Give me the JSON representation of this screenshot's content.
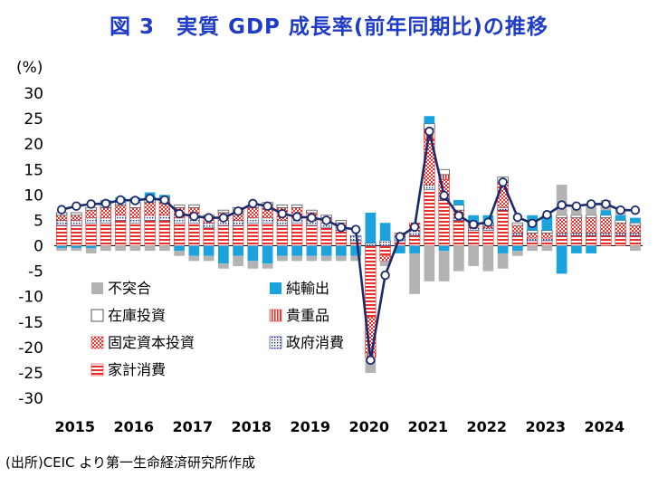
{
  "chart_data": {
    "type": "bar",
    "title": "図 3　実質 GDP 成長率(前年同期比)の推移",
    "ylabel": "(%)",
    "ylim": [
      -30,
      30
    ],
    "yticks": [
      30,
      25,
      20,
      15,
      10,
      5,
      0,
      -5,
      -10,
      -15,
      -20,
      -25,
      -30
    ],
    "year_labels": [
      "2015",
      "2016",
      "2017",
      "2018",
      "2019",
      "2020",
      "2021",
      "2022",
      "2023",
      "2024"
    ],
    "categories": [
      "2015Q1",
      "2015Q2",
      "2015Q3",
      "2015Q4",
      "2016Q1",
      "2016Q2",
      "2016Q3",
      "2016Q4",
      "2017Q1",
      "2017Q2",
      "2017Q3",
      "2017Q4",
      "2018Q1",
      "2018Q2",
      "2018Q3",
      "2018Q4",
      "2019Q1",
      "2019Q2",
      "2019Q3",
      "2019Q4",
      "2020Q1",
      "2020Q2",
      "2020Q3",
      "2020Q4",
      "2021Q1",
      "2021Q2",
      "2021Q3",
      "2021Q4",
      "2022Q1",
      "2022Q2",
      "2022Q3",
      "2022Q4",
      "2023Q1",
      "2023Q2",
      "2023Q3",
      "2023Q4",
      "2024Q1",
      "2024Q2",
      "2024Q3",
      "2024Q4"
    ],
    "legend_placement": "bottom-left inside plot",
    "series": [
      {
        "name": "家計消費",
        "kind": "bar",
        "color": "#e8302a",
        "pattern": "hstripe",
        "values": [
          4,
          4,
          4.5,
          4.5,
          5,
          4.5,
          5,
          5,
          4.5,
          4.5,
          3.5,
          4,
          4,
          4.5,
          4.5,
          4,
          4.5,
          4,
          3.5,
          3,
          1,
          -14,
          -2,
          1,
          2,
          11,
          9,
          5,
          3,
          3,
          7,
          2,
          1,
          1,
          2,
          2,
          2,
          2,
          2,
          2
        ]
      },
      {
        "name": "政府消費",
        "kind": "bar",
        "color": "#1f2f7a",
        "pattern": "dots",
        "values": [
          1,
          1,
          1,
          1,
          1,
          1,
          1,
          1,
          1,
          1,
          1,
          1,
          1,
          1,
          1,
          1,
          1,
          1,
          1,
          1,
          1,
          0.5,
          1,
          1,
          1,
          1,
          0.5,
          0.5,
          0.5,
          0.5,
          0.5,
          0.5,
          0.5,
          0.5,
          0.5,
          0.5,
          0.5,
          0.5,
          0.5,
          0.5
        ]
      },
      {
        "name": "固定資本投資",
        "kind": "bar",
        "color": "#e8302a",
        "pattern": "check",
        "values": [
          1,
          1,
          1.5,
          2,
          2,
          2,
          2.5,
          2.5,
          2,
          2,
          1,
          1.5,
          1.5,
          2,
          2.5,
          2.5,
          2,
          1.5,
          1,
          0.5,
          0,
          -7,
          -1,
          0.5,
          1.5,
          9,
          3.5,
          1.5,
          0.5,
          0.5,
          5,
          1.5,
          1,
          1,
          3,
          3,
          3,
          3,
          2,
          1.5
        ]
      },
      {
        "name": "貴重品",
        "kind": "bar",
        "color": "#e8302a",
        "pattern": "vstripe",
        "values": [
          0,
          0,
          0,
          0,
          0,
          0,
          0,
          0,
          0,
          0,
          0,
          0,
          0,
          0,
          0,
          0,
          0,
          0,
          0,
          0,
          0,
          -1,
          0,
          0,
          0,
          2,
          1,
          0,
          0,
          0,
          0,
          0,
          0,
          0,
          0,
          0,
          0,
          0,
          0,
          0
        ]
      },
      {
        "name": "在庫投資",
        "kind": "bar",
        "color": "#ffffff",
        "pattern": "outline",
        "values": [
          0.5,
          0.5,
          0.5,
          1,
          0.5,
          1,
          1,
          1,
          0.5,
          0.5,
          0.5,
          0.5,
          1,
          0.5,
          0.5,
          0.5,
          0.5,
          0.5,
          0.5,
          0.5,
          0,
          0,
          0,
          0,
          0,
          1,
          1,
          1,
          0.5,
          0.5,
          1,
          0.5,
          0.5,
          0.5,
          0.5,
          0.5,
          0.5,
          0.5,
          0.5,
          0.5
        ]
      },
      {
        "name": "純輸出",
        "kind": "bar",
        "color": "#1aa3dc",
        "pattern": "solid",
        "values": [
          -0.5,
          -0.5,
          -0.5,
          0.5,
          1,
          1,
          1,
          0.5,
          -1,
          -2,
          -2,
          -3.5,
          -2,
          -3,
          -3.5,
          -2,
          -2,
          -2,
          -2,
          -2,
          -2,
          6,
          3.5,
          -1.5,
          -1.5,
          1.5,
          -1,
          1,
          1.5,
          1.5,
          -1.5,
          -1,
          3,
          3,
          -5.5,
          -1.5,
          -1.5,
          1,
          1,
          1
        ]
      },
      {
        "name": "不突合",
        "kind": "bar",
        "color": "#b3b3b3",
        "pattern": "solid",
        "values": [
          -0.5,
          -0.5,
          -1,
          -1,
          -1,
          -1,
          -1,
          -1,
          -1,
          -1,
          -1,
          -1,
          -2,
          -1.5,
          -1,
          -1,
          -1,
          -1,
          -1,
          -1,
          -1,
          -3,
          -1,
          0,
          -8,
          -7,
          -6,
          -5,
          -4,
          -5,
          -3,
          -1,
          -1,
          -1,
          6,
          1.5,
          2,
          2,
          1.5,
          -1
        ]
      },
      {
        "name": "実質GDP成長率",
        "kind": "line",
        "color": "#1b2a6b",
        "values": [
          7.1,
          7.8,
          8.2,
          8.3,
          9.0,
          8.9,
          9.3,
          9.0,
          6.3,
          5.8,
          5.5,
          5.5,
          6.8,
          8.3,
          7.8,
          6.3,
          5.7,
          5.5,
          5.0,
          3.6,
          3.2,
          -22.5,
          -5.8,
          1.8,
          3.7,
          22.5,
          9.9,
          5.9,
          4.2,
          4.6,
          12.5,
          5.6,
          4.4,
          6.1,
          8.0,
          7.8,
          8.2,
          8.2,
          7.0,
          7.0
        ]
      }
    ]
  },
  "source": "(出所)CEIC より第一生命経済研究所作成"
}
